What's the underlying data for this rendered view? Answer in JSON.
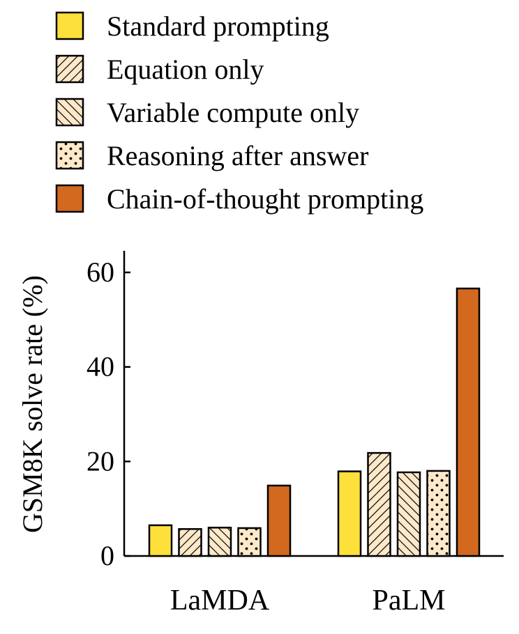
{
  "chart_data": {
    "type": "bar",
    "categories": [
      "LaMDA",
      "PaLM"
    ],
    "series": [
      {
        "name": "Standard prompting",
        "values": [
          6.5,
          17.9
        ],
        "color": "#fde03a",
        "pattern": "solid"
      },
      {
        "name": "Equation only",
        "values": [
          5.7,
          21.8
        ],
        "color": "#fde9c9",
        "pattern": "hatch-diagonal-down"
      },
      {
        "name": "Variable compute only",
        "values": [
          6.0,
          17.7
        ],
        "color": "#fde9c9",
        "pattern": "hatch-diagonal-up"
      },
      {
        "name": "Reasoning after answer",
        "values": [
          5.9,
          18.0
        ],
        "color": "#fde9c9",
        "pattern": "dots"
      },
      {
        "name": "Chain-of-thought prompting",
        "values": [
          14.9,
          56.6
        ],
        "color": "#d2691e",
        "pattern": "solid"
      }
    ],
    "ylabel": "GSM8K solve rate (%)",
    "yticks": [
      0,
      20,
      40,
      60
    ],
    "ylim": [
      0,
      65
    ],
    "legend_position": "top",
    "grid": false
  }
}
